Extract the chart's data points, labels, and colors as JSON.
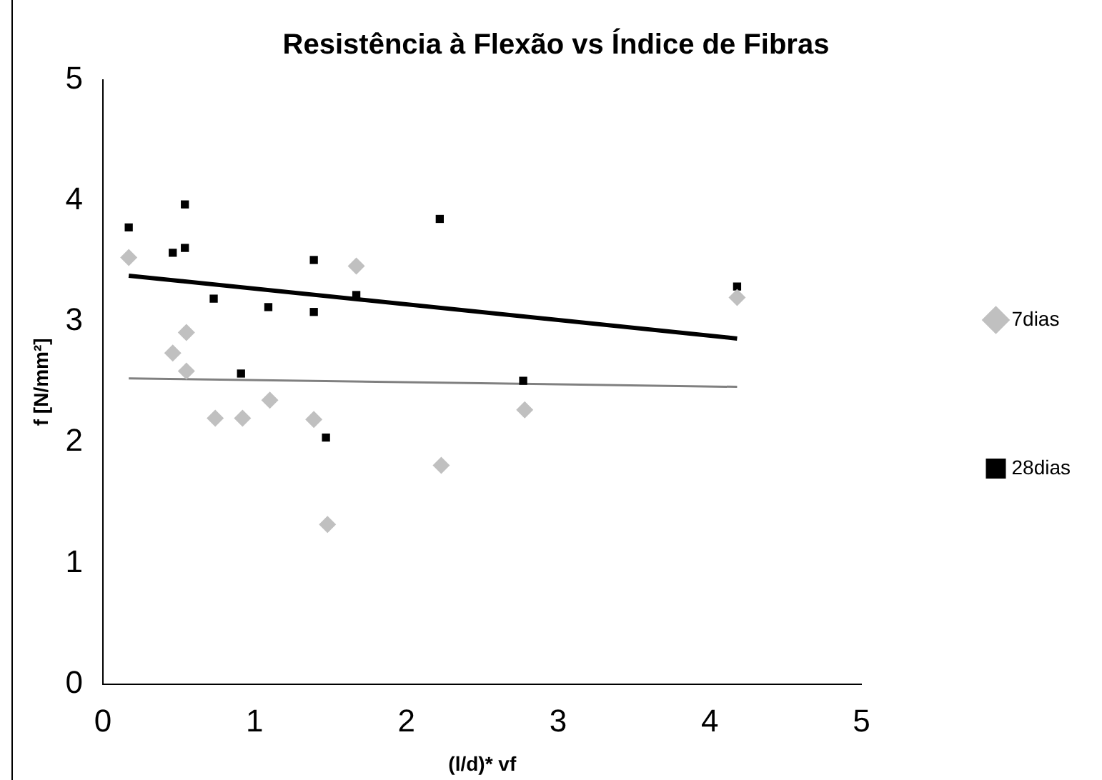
{
  "chart_data": {
    "type": "scatter",
    "title": "Resistência à Flexão vs Índice de Fibras",
    "xlabel": "(l/d)* vf",
    "ylabel": "f [N/mm²]",
    "xlim": [
      0,
      5
    ],
    "xticks": [
      0,
      1,
      2,
      3,
      4,
      5
    ],
    "ylim": [
      0,
      5
    ],
    "yticks": [
      0,
      1,
      2,
      3,
      4,
      5
    ],
    "grid": false,
    "legend": "right",
    "series": [
      {
        "name": "7dias",
        "color": "#c0c0c0",
        "marker": "diamond",
        "x": [
          0.17,
          0.46,
          0.55,
          0.55,
          0.74,
          0.92,
          1.1,
          1.39,
          1.48,
          1.67,
          2.23,
          2.78,
          4.18
        ],
        "values": [
          3.53,
          2.74,
          2.91,
          2.59,
          2.2,
          2.2,
          2.35,
          2.19,
          1.32,
          3.46,
          1.81,
          2.27,
          3.2
        ]
      },
      {
        "name": "28dias",
        "color": "#000000",
        "marker": "square",
        "x": [
          0.17,
          0.46,
          0.54,
          0.54,
          0.73,
          0.91,
          1.09,
          1.39,
          1.39,
          1.47,
          1.67,
          2.22,
          2.77,
          4.18
        ],
        "values": [
          3.78,
          3.57,
          3.97,
          3.61,
          3.19,
          2.57,
          3.12,
          3.51,
          3.08,
          2.04,
          3.22,
          3.85,
          2.51,
          3.29
        ]
      },
      {
        "type": "line",
        "color": "#808080",
        "marker": "none",
        "line_style": "solid",
        "x": [
          0.17,
          4.18
        ],
        "values": [
          2.53,
          2.46
        ]
      },
      {
        "type": "line",
        "color": "#000000",
        "marker": "none",
        "line_style": "solid",
        "x": [
          0.17,
          4.18
        ],
        "values": [
          3.38,
          2.86
        ]
      }
    ]
  }
}
